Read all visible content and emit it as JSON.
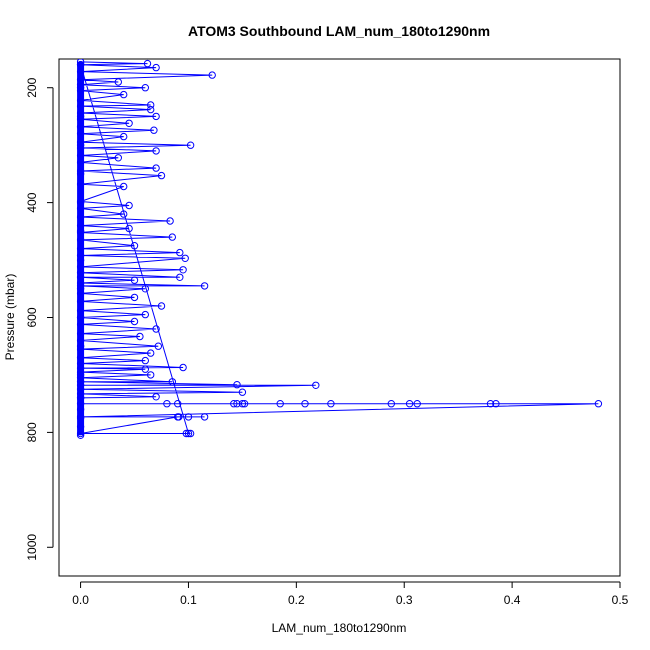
{
  "chart_data": {
    "type": "line",
    "title": "ATOM3 Southbound LAM_num_180to1290nm",
    "xlabel": "LAM_num_180to1290nm",
    "ylabel": "Pressure (mbar)",
    "xlim": [
      -0.02,
      0.5
    ],
    "ylim": [
      1050,
      150
    ],
    "x_ticks": [
      0.0,
      0.1,
      0.2,
      0.3,
      0.4,
      0.5
    ],
    "x_tick_labels": [
      "0.0",
      "0.1",
      "0.2",
      "0.3",
      "0.4",
      "0.5"
    ],
    "y_ticks": [
      200,
      400,
      600,
      800,
      1000
    ],
    "y_tick_labels": [
      "200",
      "400",
      "600",
      "800",
      "1000"
    ],
    "grid": false,
    "legend": "none",
    "series": [
      {
        "color": "#0000ff",
        "marker": "open-circle",
        "points": [
          [
            0.0,
            805
          ],
          [
            0.0,
            790
          ],
          [
            0.0,
            775
          ],
          [
            0.0,
            760
          ],
          [
            0.0,
            740
          ],
          [
            0.0,
            700
          ],
          [
            0.0,
            650
          ],
          [
            0.0,
            600
          ],
          [
            0.0,
            550
          ],
          [
            0.0,
            500
          ],
          [
            0.0,
            450
          ],
          [
            0.0,
            400
          ],
          [
            0.0,
            350
          ],
          [
            0.0,
            300
          ],
          [
            0.0,
            250
          ],
          [
            0.0,
            200
          ],
          [
            0.0,
            160
          ],
          [
            0.1,
            802
          ],
          [
            0.102,
            802
          ],
          [
            0.098,
            802
          ],
          [
            0.0,
            802
          ],
          [
            0.09,
            773
          ],
          [
            0.1,
            773
          ],
          [
            0.115,
            773
          ],
          [
            0.091,
            773
          ],
          [
            0.0,
            773
          ],
          [
            0.48,
            750
          ],
          [
            0.385,
            750
          ],
          [
            0.38,
            750
          ],
          [
            0.312,
            750
          ],
          [
            0.305,
            750
          ],
          [
            0.288,
            750
          ],
          [
            0.232,
            750
          ],
          [
            0.208,
            750
          ],
          [
            0.185,
            750
          ],
          [
            0.152,
            750
          ],
          [
            0.15,
            750
          ],
          [
            0.145,
            750
          ],
          [
            0.142,
            750
          ],
          [
            0.09,
            750
          ],
          [
            0.08,
            750
          ],
          [
            0.0,
            750
          ],
          [
            0.0,
            740
          ],
          [
            0.07,
            738
          ],
          [
            0.0,
            733
          ],
          [
            0.15,
            730
          ],
          [
            0.0,
            725
          ],
          [
            0.218,
            718
          ],
          [
            0.0,
            718
          ],
          [
            0.145,
            717
          ],
          [
            0.0,
            712
          ],
          [
            0.085,
            712
          ],
          [
            0.0,
            705
          ],
          [
            0.065,
            700
          ],
          [
            0.0,
            695
          ],
          [
            0.06,
            690
          ],
          [
            0.0,
            688
          ],
          [
            0.095,
            687
          ],
          [
            0.0,
            680
          ],
          [
            0.06,
            675
          ],
          [
            0.0,
            670
          ],
          [
            0.065,
            662
          ],
          [
            0.0,
            655
          ],
          [
            0.072,
            650
          ],
          [
            0.0,
            640
          ],
          [
            0.055,
            633
          ],
          [
            0.0,
            628
          ],
          [
            0.07,
            620
          ],
          [
            0.0,
            612
          ],
          [
            0.05,
            607
          ],
          [
            0.0,
            600
          ],
          [
            0.06,
            595
          ],
          [
            0.0,
            588
          ],
          [
            0.075,
            580
          ],
          [
            0.0,
            572
          ],
          [
            0.05,
            565
          ],
          [
            0.0,
            558
          ],
          [
            0.06,
            550
          ],
          [
            0.0,
            545
          ],
          [
            0.115,
            545
          ],
          [
            0.0,
            540
          ],
          [
            0.05,
            535
          ],
          [
            0.0,
            530
          ],
          [
            0.092,
            530
          ],
          [
            0.0,
            522
          ],
          [
            0.095,
            517
          ],
          [
            0.0,
            512
          ],
          [
            0.097,
            497
          ],
          [
            0.0,
            492
          ],
          [
            0.092,
            487
          ],
          [
            0.0,
            480
          ],
          [
            0.05,
            475
          ],
          [
            0.0,
            465
          ],
          [
            0.085,
            460
          ],
          [
            0.0,
            452
          ],
          [
            0.045,
            445
          ],
          [
            0.0,
            440
          ],
          [
            0.083,
            432
          ],
          [
            0.0,
            425
          ],
          [
            0.04,
            420
          ],
          [
            0.0,
            410
          ],
          [
            0.045,
            405
          ],
          [
            0.0,
            398
          ],
          [
            0.04,
            372
          ],
          [
            0.0,
            368
          ],
          [
            0.075,
            353
          ],
          [
            0.0,
            345
          ],
          [
            0.07,
            340
          ],
          [
            0.0,
            330
          ],
          [
            0.035,
            322
          ],
          [
            0.0,
            318
          ],
          [
            0.07,
            310
          ],
          [
            0.0,
            305
          ],
          [
            0.102,
            300
          ],
          [
            0.0,
            295
          ],
          [
            0.04,
            285
          ],
          [
            0.0,
            280
          ],
          [
            0.068,
            274
          ],
          [
            0.0,
            268
          ],
          [
            0.045,
            262
          ],
          [
            0.0,
            255
          ],
          [
            0.07,
            250
          ],
          [
            0.0,
            244
          ],
          [
            0.065,
            238
          ],
          [
            0.0,
            232
          ],
          [
            0.065,
            230
          ],
          [
            0.0,
            222
          ],
          [
            0.04,
            212
          ],
          [
            0.0,
            205
          ],
          [
            0.06,
            200
          ],
          [
            0.0,
            195
          ],
          [
            0.035,
            190
          ],
          [
            0.0,
            186
          ],
          [
            0.122,
            178
          ],
          [
            0.0,
            172
          ],
          [
            0.07,
            165
          ],
          [
            0.0,
            160
          ],
          [
            0.062,
            158
          ],
          [
            0.0,
            155
          ]
        ]
      }
    ]
  }
}
